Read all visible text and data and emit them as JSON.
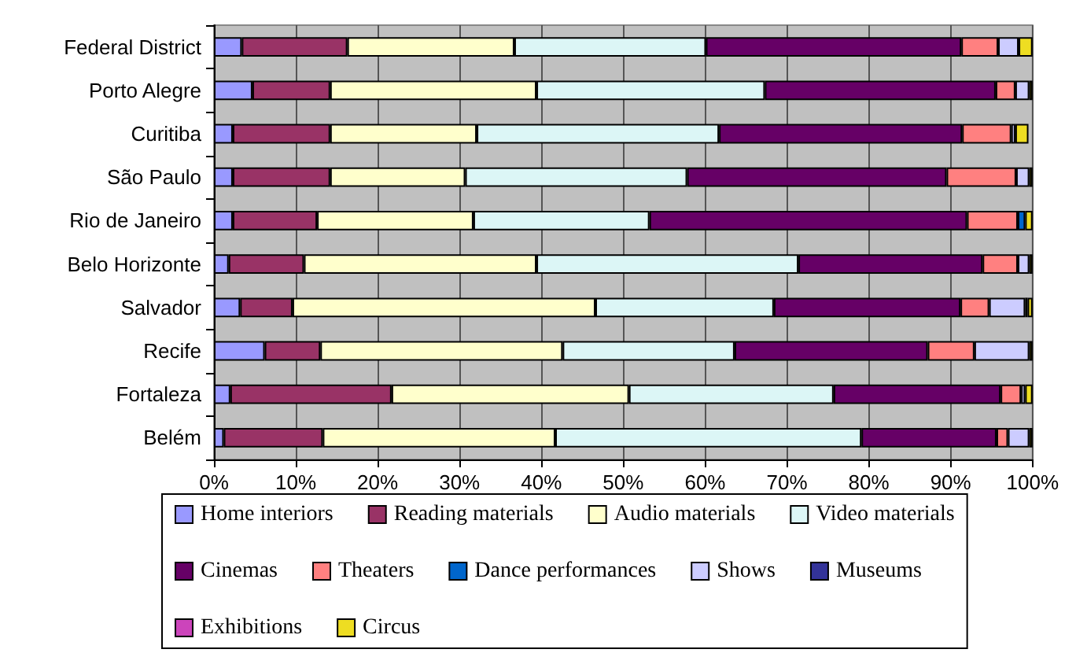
{
  "chart_data": {
    "type": "bar",
    "orientation": "horizontal",
    "stacked": true,
    "categories": [
      "Federal District",
      "Porto Alegre",
      "Curitiba",
      "São Paulo",
      "Rio de Janeiro",
      "Belo Horizonte",
      "Salvador",
      "Recife",
      "Fortaleza",
      "Belém"
    ],
    "series": [
      {
        "name": "Home interiors",
        "color": "#9999ff",
        "values": [
          3.4,
          4.7,
          2.3,
          2.3,
          2.3,
          1.8,
          3.2,
          6.2,
          2.0,
          1.2
        ]
      },
      {
        "name": "Reading materials",
        "color": "#993366",
        "values": [
          12.9,
          9.5,
          11.9,
          11.9,
          10.3,
          9.2,
          6.4,
          6.8,
          19.7,
          12.1
        ]
      },
      {
        "name": "Audio materials",
        "color": "#ffffcc",
        "values": [
          20.4,
          25.2,
          17.9,
          16.5,
          19.1,
          28.4,
          37.0,
          29.6,
          29.0,
          28.4
        ]
      },
      {
        "name": "Video materials",
        "color": "#dcf6f6",
        "values": [
          23.4,
          27.9,
          29.6,
          27.1,
          21.5,
          32.0,
          21.8,
          21.0,
          25.0,
          37.4
        ]
      },
      {
        "name": "Cinemas",
        "color": "#660066",
        "values": [
          31.2,
          28.2,
          29.7,
          31.7,
          38.8,
          22.5,
          22.8,
          23.6,
          20.4,
          16.5
        ]
      },
      {
        "name": "Theaters",
        "color": "#ff8080",
        "values": [
          4.5,
          2.4,
          6.0,
          8.5,
          6.2,
          4.3,
          3.5,
          5.7,
          2.5,
          1.4
        ]
      },
      {
        "name": "Dance performances",
        "color": "#0066cc",
        "values": [
          0,
          0,
          0,
          0,
          0.9,
          0,
          0,
          0,
          0,
          0
        ]
      },
      {
        "name": "Shows",
        "color": "#ccccff",
        "values": [
          2.5,
          1.7,
          0.5,
          1.6,
          0,
          1.4,
          4.4,
          6.7,
          0.5,
          2.6
        ]
      },
      {
        "name": "Museums",
        "color": "#333399",
        "values": [
          0,
          0,
          0,
          0,
          0,
          0,
          0.3,
          0,
          0,
          0
        ]
      },
      {
        "name": "Exhibitions",
        "color": "#cc44bb",
        "values": [
          0,
          0,
          0,
          0,
          0,
          0,
          0,
          0,
          0,
          0
        ]
      },
      {
        "name": "Circus",
        "color": "#eedd22",
        "values": [
          1.7,
          0.4,
          1.6,
          0.4,
          0.9,
          0.4,
          0.6,
          0.4,
          0.9,
          0.4
        ]
      }
    ],
    "xlim": [
      0,
      100
    ],
    "xticks": [
      {
        "value": 0,
        "label": "0%"
      },
      {
        "value": 10,
        "label": "10%"
      },
      {
        "value": 20,
        "label": "20%"
      },
      {
        "value": 30,
        "label": "30%"
      },
      {
        "value": 40,
        "label": "40%"
      },
      {
        "value": 50,
        "label": "50%"
      },
      {
        "value": 60,
        "label": "60%"
      },
      {
        "value": 70,
        "label": "70%"
      },
      {
        "value": 80,
        "label": "80%"
      },
      {
        "value": 90,
        "label": "90%"
      },
      {
        "value": 100,
        "label": "100%"
      }
    ],
    "grid": "x",
    "legend": "bottom"
  }
}
